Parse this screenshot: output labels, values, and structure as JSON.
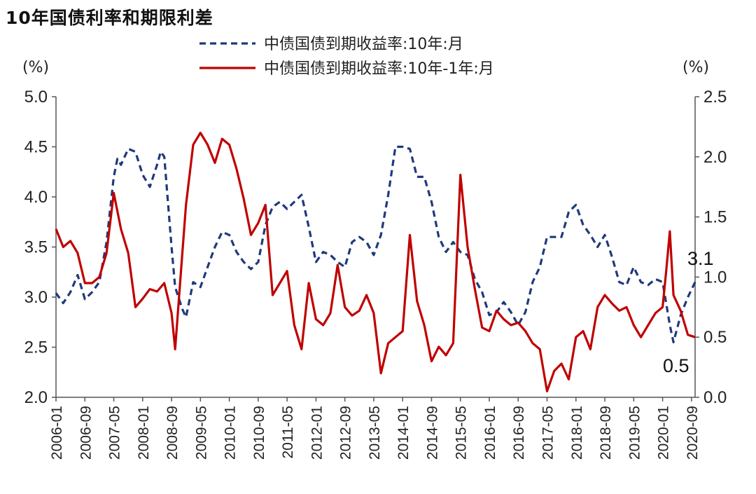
{
  "title": "10年国债利率和期限利差",
  "chart_data": {
    "type": "line",
    "title": "10年国债利率和期限利差",
    "left_axis": {
      "unit": "(%)",
      "range": [
        2.0,
        5.0
      ],
      "ticks": [
        "5.0",
        "4.5",
        "4.0",
        "3.5",
        "3.0",
        "2.5",
        "2.0"
      ]
    },
    "right_axis": {
      "unit": "(%)",
      "range": [
        0.0,
        2.5
      ],
      "ticks": [
        "2.5",
        "2.0",
        "1.5",
        "1.0",
        "0.5",
        "0.0"
      ]
    },
    "x_ticks": [
      "2006-01",
      "2006-09",
      "2007-05",
      "2008-01",
      "2008-09",
      "2009-05",
      "2010-01",
      "2010-09",
      "2011-05",
      "2012-01",
      "2012-09",
      "2013-05",
      "2014-01",
      "2014-09",
      "2015-05",
      "2016-01",
      "2016-09",
      "2017-05",
      "2018-01",
      "2018-09",
      "2019-05",
      "2020-01",
      "2020-09"
    ],
    "legend_position": "top",
    "grid": false,
    "series": [
      {
        "name": "中债国债到期收益率:10年:月",
        "axis": "left",
        "style": "dashed",
        "color": "#1F3A7A",
        "points": [
          [
            "2006-01",
            3.04
          ],
          [
            "2006-03",
            2.94
          ],
          [
            "2006-05",
            3.05
          ],
          [
            "2006-07",
            3.22
          ],
          [
            "2006-09",
            2.98
          ],
          [
            "2006-11",
            3.05
          ],
          [
            "2007-01",
            3.15
          ],
          [
            "2007-03",
            3.55
          ],
          [
            "2007-05",
            4.2
          ],
          [
            "2007-06",
            4.38
          ],
          [
            "2007-07",
            4.32
          ],
          [
            "2007-09",
            4.48
          ],
          [
            "2007-11",
            4.45
          ],
          [
            "2008-01",
            4.22
          ],
          [
            "2008-03",
            4.1
          ],
          [
            "2008-05",
            4.32
          ],
          [
            "2008-06",
            4.45
          ],
          [
            "2008-07",
            4.4
          ],
          [
            "2008-09",
            3.5
          ],
          [
            "2008-10",
            3.1
          ],
          [
            "2008-12",
            2.88
          ],
          [
            "2009-01",
            2.8
          ],
          [
            "2009-03",
            3.15
          ],
          [
            "2009-05",
            3.1
          ],
          [
            "2009-07",
            3.3
          ],
          [
            "2009-09",
            3.5
          ],
          [
            "2009-11",
            3.65
          ],
          [
            "2010-01",
            3.62
          ],
          [
            "2010-03",
            3.45
          ],
          [
            "2010-05",
            3.35
          ],
          [
            "2010-07",
            3.28
          ],
          [
            "2010-09",
            3.35
          ],
          [
            "2010-11",
            3.72
          ],
          [
            "2011-01",
            3.9
          ],
          [
            "2011-03",
            3.95
          ],
          [
            "2011-05",
            3.88
          ],
          [
            "2011-07",
            3.95
          ],
          [
            "2011-09",
            4.02
          ],
          [
            "2011-11",
            3.7
          ],
          [
            "2012-01",
            3.35
          ],
          [
            "2012-03",
            3.45
          ],
          [
            "2012-05",
            3.42
          ],
          [
            "2012-07",
            3.35
          ],
          [
            "2012-09",
            3.3
          ],
          [
            "2012-11",
            3.55
          ],
          [
            "2013-01",
            3.6
          ],
          [
            "2013-03",
            3.55
          ],
          [
            "2013-05",
            3.42
          ],
          [
            "2013-07",
            3.62
          ],
          [
            "2013-09",
            4.02
          ],
          [
            "2013-11",
            4.5
          ],
          [
            "2014-01",
            4.5
          ],
          [
            "2014-03",
            4.48
          ],
          [
            "2014-05",
            4.2
          ],
          [
            "2014-07",
            4.2
          ],
          [
            "2014-09",
            3.95
          ],
          [
            "2014-11",
            3.6
          ],
          [
            "2015-01",
            3.45
          ],
          [
            "2015-03",
            3.55
          ],
          [
            "2015-05",
            3.45
          ],
          [
            "2015-07",
            3.42
          ],
          [
            "2015-09",
            3.18
          ],
          [
            "2015-11",
            3.05
          ],
          [
            "2016-01",
            2.82
          ],
          [
            "2016-03",
            2.85
          ],
          [
            "2016-05",
            2.95
          ],
          [
            "2016-07",
            2.85
          ],
          [
            "2016-09",
            2.72
          ],
          [
            "2016-11",
            2.85
          ],
          [
            "2017-01",
            3.15
          ],
          [
            "2017-03",
            3.3
          ],
          [
            "2017-05",
            3.6
          ],
          [
            "2017-07",
            3.6
          ],
          [
            "2017-09",
            3.6
          ],
          [
            "2017-11",
            3.85
          ],
          [
            "2018-01",
            3.92
          ],
          [
            "2018-03",
            3.72
          ],
          [
            "2018-05",
            3.62
          ],
          [
            "2018-07",
            3.5
          ],
          [
            "2018-09",
            3.62
          ],
          [
            "2018-11",
            3.4
          ],
          [
            "2019-01",
            3.15
          ],
          [
            "2019-03",
            3.12
          ],
          [
            "2019-05",
            3.3
          ],
          [
            "2019-07",
            3.15
          ],
          [
            "2019-09",
            3.12
          ],
          [
            "2019-11",
            3.18
          ],
          [
            "2020-01",
            3.15
          ],
          [
            "2020-03",
            2.72
          ],
          [
            "2020-04",
            2.55
          ],
          [
            "2020-06",
            2.82
          ],
          [
            "2020-08",
            3.0
          ],
          [
            "2020-10",
            3.15
          ]
        ]
      },
      {
        "name": "中债国债到期收益率:10年-1年:月",
        "axis": "right",
        "style": "solid",
        "color": "#C00000",
        "points": [
          [
            "2006-01",
            1.4
          ],
          [
            "2006-03",
            1.25
          ],
          [
            "2006-05",
            1.3
          ],
          [
            "2006-07",
            1.2
          ],
          [
            "2006-09",
            0.95
          ],
          [
            "2006-11",
            0.95
          ],
          [
            "2007-01",
            1.0
          ],
          [
            "2007-03",
            1.2
          ],
          [
            "2007-05",
            1.7
          ],
          [
            "2007-07",
            1.4
          ],
          [
            "2007-09",
            1.2
          ],
          [
            "2007-11",
            0.75
          ],
          [
            "2008-01",
            0.82
          ],
          [
            "2008-03",
            0.9
          ],
          [
            "2008-05",
            0.88
          ],
          [
            "2008-07",
            0.95
          ],
          [
            "2008-09",
            0.7
          ],
          [
            "2008-10",
            0.4
          ],
          [
            "2008-12",
            1.2
          ],
          [
            "2009-01",
            1.6
          ],
          [
            "2009-03",
            2.1
          ],
          [
            "2009-05",
            2.2
          ],
          [
            "2009-07",
            2.1
          ],
          [
            "2009-09",
            1.95
          ],
          [
            "2009-11",
            2.15
          ],
          [
            "2010-01",
            2.1
          ],
          [
            "2010-03",
            1.9
          ],
          [
            "2010-05",
            1.65
          ],
          [
            "2010-07",
            1.35
          ],
          [
            "2010-09",
            1.45
          ],
          [
            "2010-11",
            1.6
          ],
          [
            "2011-01",
            0.85
          ],
          [
            "2011-03",
            0.95
          ],
          [
            "2011-05",
            1.05
          ],
          [
            "2011-07",
            0.6
          ],
          [
            "2011-09",
            0.4
          ],
          [
            "2011-11",
            0.95
          ],
          [
            "2012-01",
            0.65
          ],
          [
            "2012-03",
            0.6
          ],
          [
            "2012-05",
            0.7
          ],
          [
            "2012-07",
            1.1
          ],
          [
            "2012-09",
            0.75
          ],
          [
            "2012-11",
            0.68
          ],
          [
            "2013-01",
            0.72
          ],
          [
            "2013-03",
            0.85
          ],
          [
            "2013-05",
            0.7
          ],
          [
            "2013-07",
            0.2
          ],
          [
            "2013-09",
            0.45
          ],
          [
            "2013-11",
            0.5
          ],
          [
            "2014-01",
            0.55
          ],
          [
            "2014-03",
            1.35
          ],
          [
            "2014-05",
            0.8
          ],
          [
            "2014-07",
            0.6
          ],
          [
            "2014-09",
            0.3
          ],
          [
            "2014-11",
            0.42
          ],
          [
            "2015-01",
            0.35
          ],
          [
            "2015-03",
            0.45
          ],
          [
            "2015-05",
            1.85
          ],
          [
            "2015-07",
            1.25
          ],
          [
            "2015-09",
            0.9
          ],
          [
            "2015-11",
            0.58
          ],
          [
            "2016-01",
            0.55
          ],
          [
            "2016-03",
            0.72
          ],
          [
            "2016-05",
            0.65
          ],
          [
            "2016-07",
            0.6
          ],
          [
            "2016-09",
            0.62
          ],
          [
            "2016-11",
            0.55
          ],
          [
            "2017-01",
            0.45
          ],
          [
            "2017-03",
            0.4
          ],
          [
            "2017-05",
            0.05
          ],
          [
            "2017-07",
            0.22
          ],
          [
            "2017-09",
            0.28
          ],
          [
            "2017-11",
            0.15
          ],
          [
            "2018-01",
            0.5
          ],
          [
            "2018-03",
            0.55
          ],
          [
            "2018-05",
            0.4
          ],
          [
            "2018-07",
            0.75
          ],
          [
            "2018-09",
            0.85
          ],
          [
            "2018-11",
            0.78
          ],
          [
            "2019-01",
            0.72
          ],
          [
            "2019-03",
            0.75
          ],
          [
            "2019-05",
            0.6
          ],
          [
            "2019-07",
            0.5
          ],
          [
            "2019-09",
            0.6
          ],
          [
            "2019-11",
            0.7
          ],
          [
            "2020-01",
            0.75
          ],
          [
            "2020-02",
            1.05
          ],
          [
            "2020-03",
            1.38
          ],
          [
            "2020-04",
            0.85
          ],
          [
            "2020-06",
            0.72
          ],
          [
            "2020-08",
            0.52
          ],
          [
            "2020-10",
            0.5
          ]
        ]
      }
    ],
    "annotations": [
      {
        "text": "3.1",
        "axis": "left",
        "at": [
          "2020-10",
          3.15
        ]
      },
      {
        "text": "0.5",
        "axis": "right",
        "at": [
          "2020-10",
          0.5
        ]
      }
    ]
  }
}
